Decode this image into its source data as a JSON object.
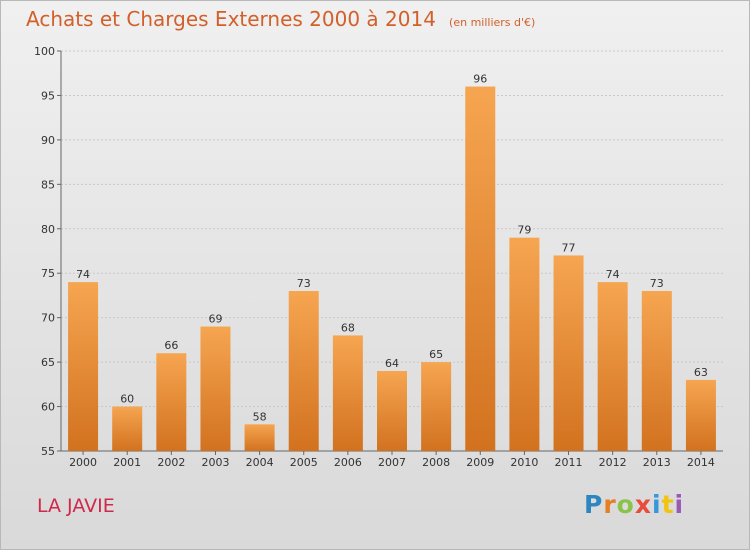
{
  "header": {
    "title": "Achats et Charges Externes 2000 à 2014",
    "subtitle": "(en milliers d'€)"
  },
  "footer": {
    "commune": "LA JAVIE",
    "logo_letters": [
      {
        "char": "P",
        "color": "#2e86c1"
      },
      {
        "char": "r",
        "color": "#e67e22"
      },
      {
        "char": "o",
        "color": "#8bc34a"
      },
      {
        "char": "x",
        "color": "#e74c3c"
      },
      {
        "char": "i",
        "color": "#3498db"
      },
      {
        "char": "t",
        "color": "#f1c40f"
      },
      {
        "char": "i",
        "color": "#9b59b6"
      }
    ]
  },
  "colors": {
    "title": "#d2602a",
    "commune": "#d0284a",
    "bar_top": "#f6a551",
    "bar_bottom": "#d2721f",
    "grid": "#c8c8c8"
  },
  "chart_data": {
    "type": "bar",
    "categories": [
      "2000",
      "2001",
      "2002",
      "2003",
      "2004",
      "2005",
      "2006",
      "2007",
      "2008",
      "2009",
      "2010",
      "2011",
      "2012",
      "2013",
      "2014"
    ],
    "values": [
      74,
      60,
      66,
      69,
      58,
      73,
      68,
      64,
      65,
      96,
      79,
      77,
      74,
      73,
      63
    ],
    "ylim": [
      55,
      100
    ],
    "yticks": [
      55,
      60,
      65,
      70,
      75,
      80,
      85,
      90,
      95,
      100
    ],
    "grid": true,
    "data_labels": true
  }
}
